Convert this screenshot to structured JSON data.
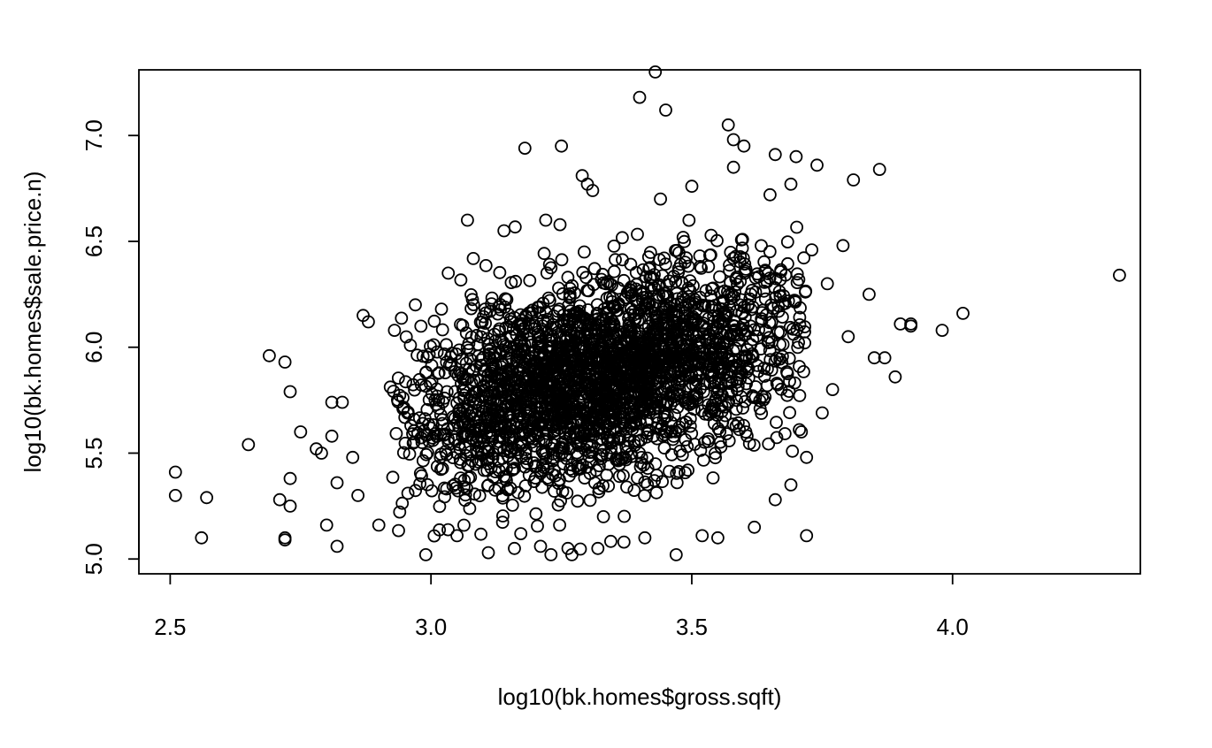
{
  "chart_data": {
    "type": "scatter",
    "title": "",
    "xlabel": "log10(bk.homes$gross.sqft)",
    "ylabel": "log10(bk.homes$sale.price.n)",
    "xlim": [
      2.44,
      4.36
    ],
    "ylim": [
      4.93,
      7.31
    ],
    "xticks": [
      "2.5",
      "3.0",
      "3.5",
      "4.0"
    ],
    "yticks": [
      "5.0",
      "5.5",
      "6.0",
      "6.5",
      "7.0"
    ],
    "marker": "open-circle",
    "grid": false,
    "legend": "none",
    "cluster": {
      "x_center": 3.33,
      "y_center": 5.86,
      "x_spread": 0.2,
      "y_spread": 0.26,
      "correlation": 0.45
    },
    "x": [
      2.51,
      2.51,
      2.56,
      2.57,
      2.65,
      2.69,
      2.71,
      2.72,
      2.72,
      2.72,
      2.73,
      2.73,
      2.73,
      2.75,
      2.78,
      2.79,
      2.8,
      2.81,
      2.81,
      2.82,
      2.82,
      2.83,
      2.85,
      2.86,
      2.87,
      2.88,
      2.9,
      3.07,
      3.18,
      3.25,
      3.29,
      3.3,
      3.4,
      3.43,
      3.45,
      3.57,
      3.58,
      3.6,
      3.66,
      3.7,
      3.74,
      3.81,
      3.86,
      3.9,
      3.92,
      3.98,
      4.02,
      4.32,
      3.72,
      3.71,
      3.75,
      3.76,
      3.79,
      3.8,
      3.84,
      3.85,
      3.87,
      3.89,
      3.92,
      2.99,
      3.05,
      3.11,
      3.16,
      3.21,
      3.23,
      3.27,
      3.32,
      3.37,
      3.41,
      3.47,
      3.52,
      3.55,
      3.62,
      3.66,
      3.69,
      3.72,
      3.77,
      2.93,
      2.97,
      3.02,
      3.14,
      3.22,
      3.31,
      3.44,
      3.5,
      3.58,
      3.65,
      3.69,
      3.73
    ],
    "y": [
      5.41,
      5.3,
      5.1,
      5.29,
      5.54,
      5.96,
      5.28,
      5.1,
      5.09,
      5.93,
      5.79,
      5.38,
      5.25,
      5.6,
      5.52,
      5.5,
      5.16,
      5.58,
      5.74,
      5.06,
      5.36,
      5.74,
      5.48,
      5.3,
      6.15,
      6.12,
      5.16,
      6.6,
      6.94,
      6.95,
      6.81,
      6.77,
      7.18,
      7.3,
      7.12,
      7.05,
      6.98,
      6.95,
      6.91,
      6.9,
      6.86,
      6.79,
      6.84,
      6.11,
      6.11,
      6.08,
      6.16,
      6.34,
      5.11,
      5.6,
      5.69,
      6.3,
      6.48,
      6.05,
      6.25,
      5.95,
      5.95,
      5.86,
      6.1,
      5.02,
      5.11,
      5.03,
      5.05,
      5.06,
      5.02,
      5.02,
      5.05,
      5.08,
      5.1,
      5.02,
      5.11,
      5.1,
      5.15,
      5.28,
      5.35,
      5.48,
      5.8,
      6.08,
      6.2,
      6.18,
      6.55,
      6.6,
      6.74,
      6.7,
      6.76,
      6.85,
      6.72,
      6.77,
      6.46
    ]
  }
}
